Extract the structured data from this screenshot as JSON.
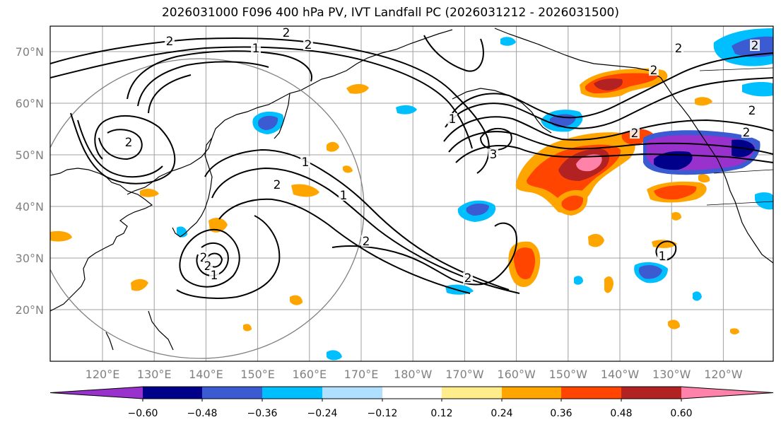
{
  "title": "2026031000 F096 400 hPa PV, IVT Landfall PC (2026031212 - 2026031500)",
  "lat_labels": [
    "70°N",
    "60°N",
    "50°N",
    "40°N",
    "30°N",
    "20°N"
  ],
  "lon_labels": [
    "120°E",
    "130°E",
    "140°E",
    "150°E",
    "160°E",
    "170°E",
    "180°W",
    "170°W",
    "160°W",
    "150°W",
    "140°W",
    "130°W",
    "120°W"
  ],
  "colorbar": {
    "colors": [
      "#9932cc",
      "#00008b",
      "#3a5bd1",
      "#00bfff",
      "#b0e0ff",
      "#ffffff",
      "#ffec8b",
      "#ffa500",
      "#ff4500",
      "#b22222",
      "#ff82ab"
    ],
    "tick_labels": [
      "−0.60",
      "−0.48",
      "−0.36",
      "−0.24",
      "−0.12",
      "0.12",
      "0.24",
      "0.36",
      "0.48",
      "0.60"
    ]
  },
  "contour_labels": [
    "2",
    "2",
    "2",
    "2",
    "1",
    "2",
    "2",
    "1",
    "1",
    "2",
    "1",
    "2",
    "3",
    "2",
    "2",
    "1",
    "2",
    "2",
    "2",
    "2",
    "2",
    "1"
  ]
}
